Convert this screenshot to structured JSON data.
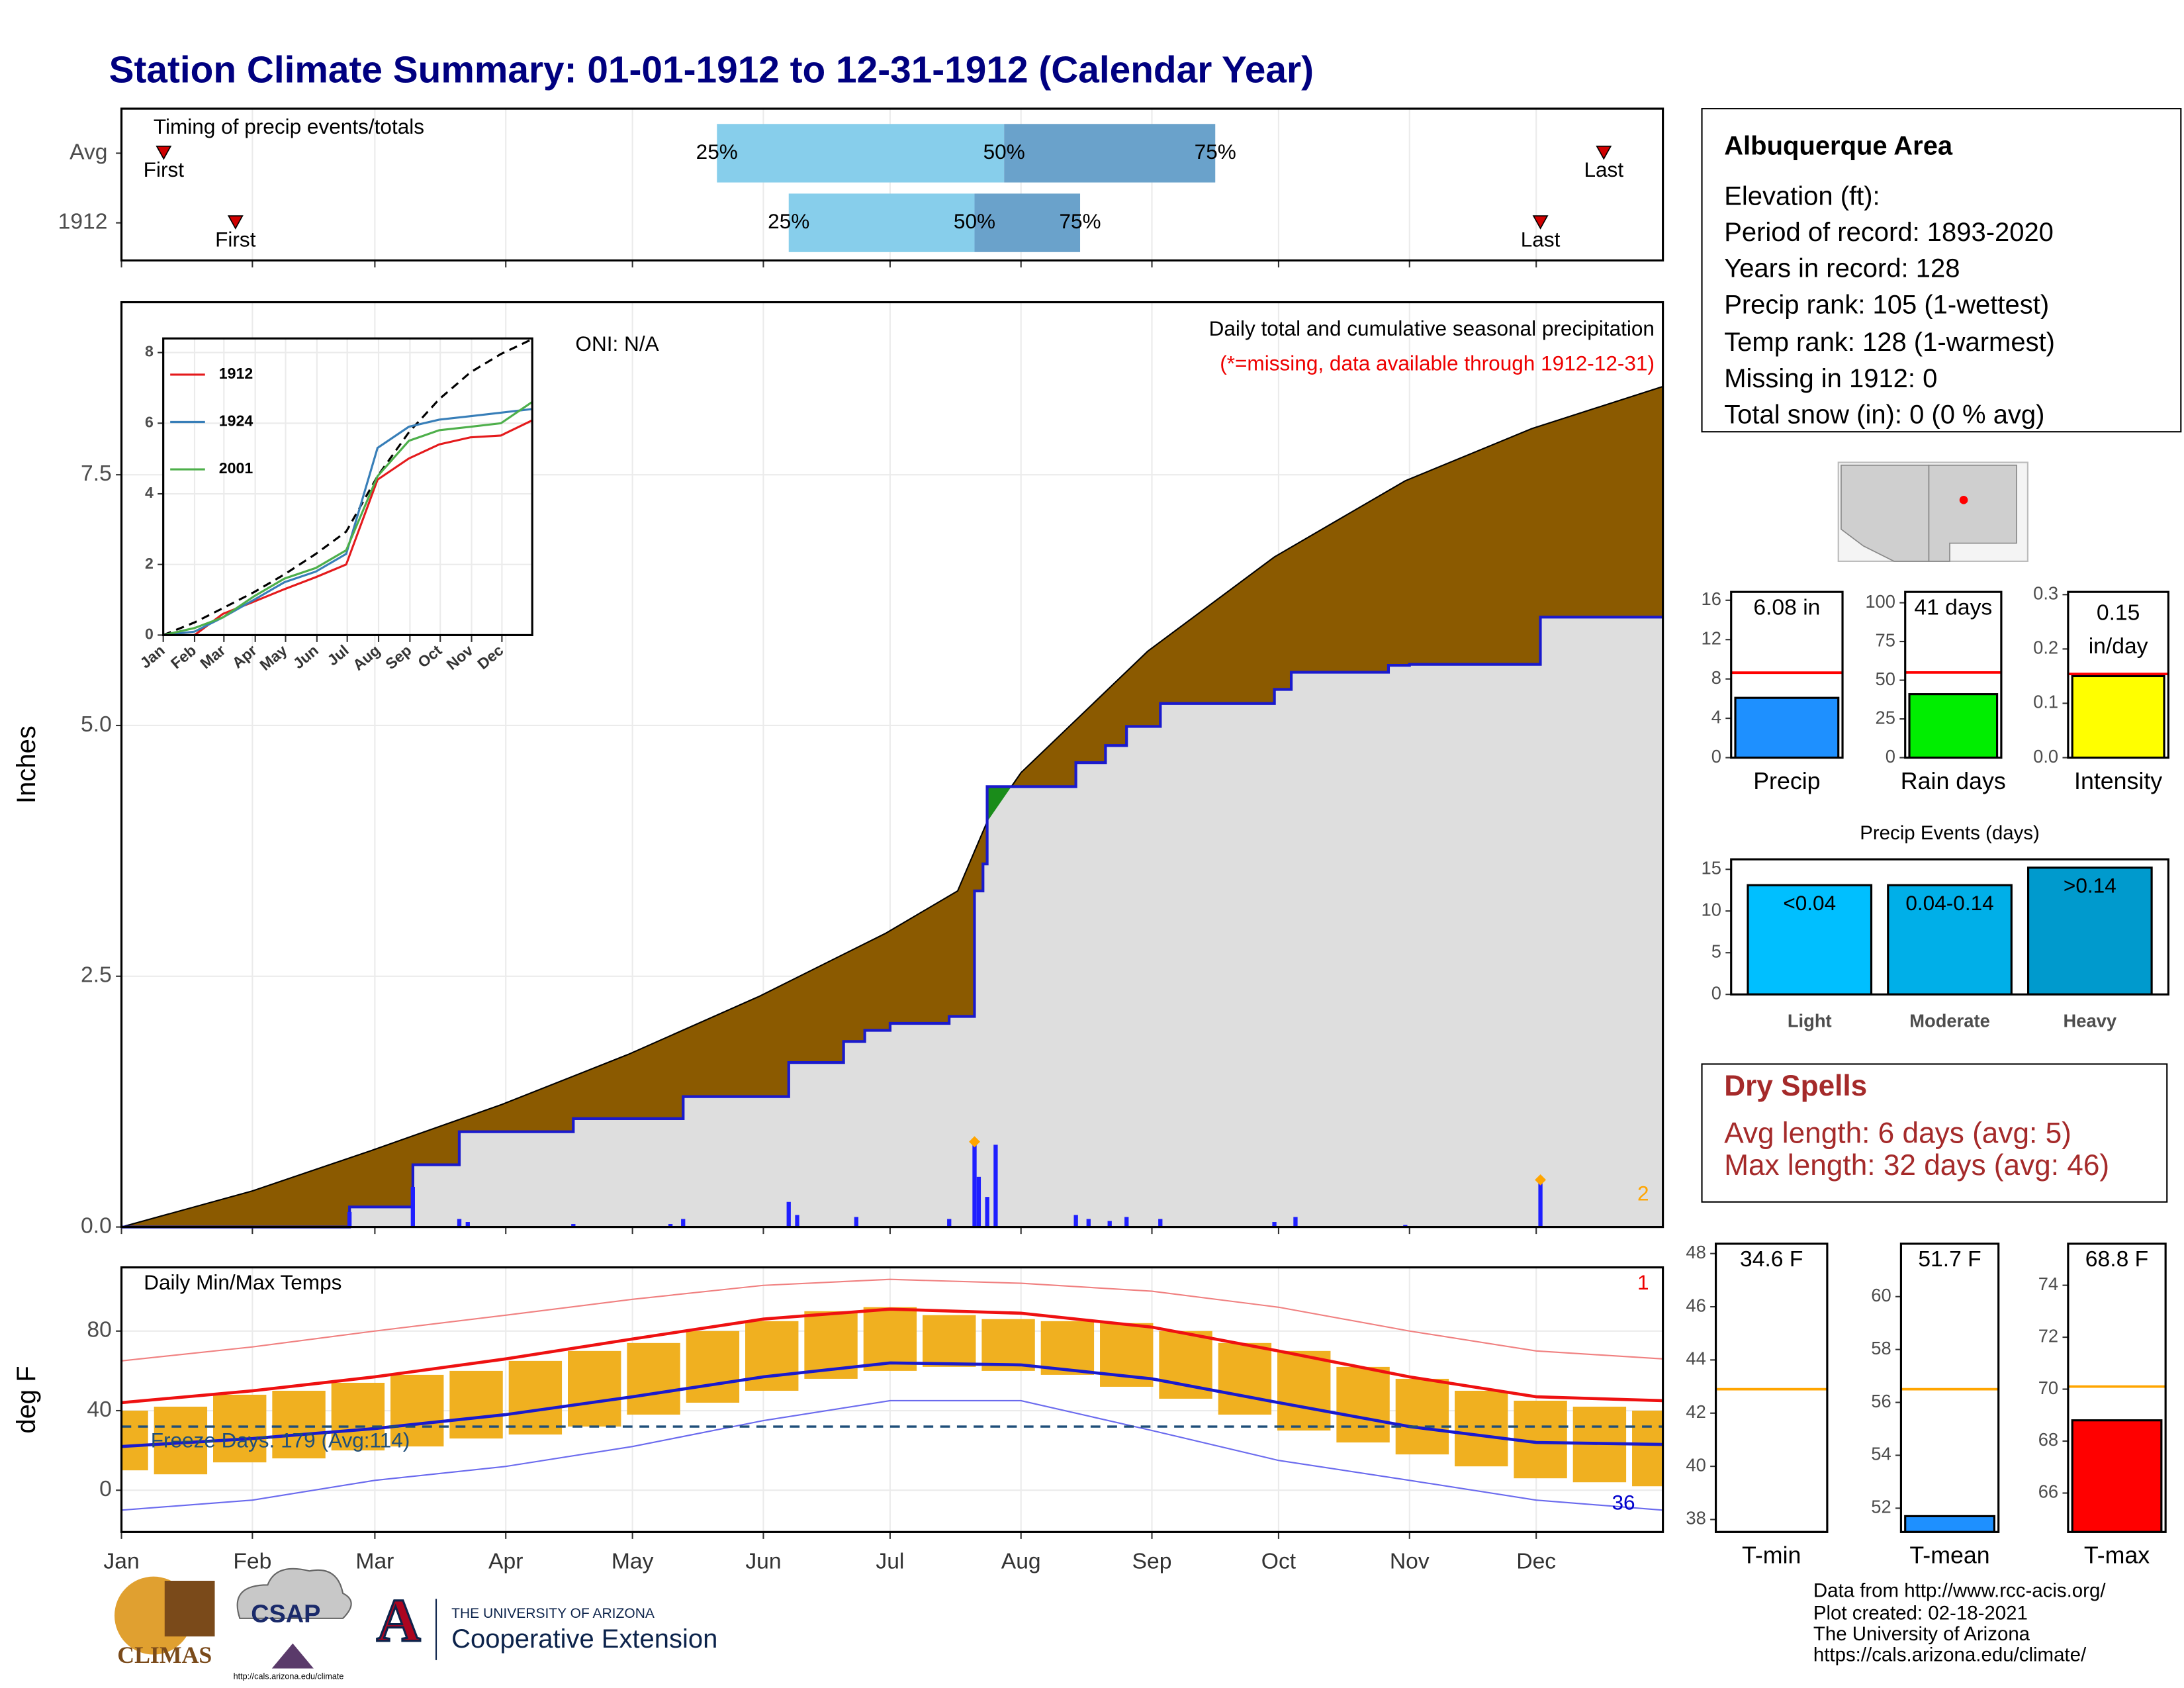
{
  "title": "Station Climate Summary: 01-01-1912 to 12-31-1912 (Calendar Year)",
  "chart_data": [
    {
      "type": "timing",
      "title": "Timing of precip events/totals",
      "rows": [
        "Avg",
        "1912"
      ],
      "first": [
        11,
        28
      ],
      "q25": [
        142,
        159
      ],
      "q50": [
        210,
        203
      ],
      "q75": [
        260,
        228
      ],
      "last": [
        352,
        337
      ],
      "first_label": "First",
      "last_label": "Last",
      "quantile_labels": [
        "25%",
        "50%",
        "75%"
      ],
      "colors": [
        "#87ceeb",
        "#6aa2cb"
      ],
      "marker_color": "#d00000",
      "xlim": [
        1,
        366
      ],
      "xticks": [
        {
          "value": 1,
          "label": "Jan"
        },
        {
          "value": 32,
          "label": "Feb"
        },
        {
          "value": 61,
          "label": "Mar"
        },
        {
          "value": 92,
          "label": "Apr"
        },
        {
          "value": 122,
          "label": "May"
        },
        {
          "value": 153,
          "label": "Jun"
        },
        {
          "value": 183,
          "label": "Jul"
        },
        {
          "value": 214,
          "label": "Aug"
        },
        {
          "value": 245,
          "label": "Sep"
        },
        {
          "value": 275,
          "label": "Oct"
        },
        {
          "value": 306,
          "label": "Nov"
        },
        {
          "value": 336,
          "label": "Dec"
        }
      ],
      "grid": true
    },
    {
      "type": "precip_cumulative",
      "title": "Daily total and cumulative seasonal precipitation",
      "subtitle": "(*=missing, data available through 1912-12-31)",
      "annotation": "ONI: N/A",
      "corner_label": "2",
      "ylabel": "Inches",
      "xlim": [
        1,
        366
      ],
      "xticks": [
        {
          "value": 1,
          "label": "Jan"
        },
        {
          "value": 32,
          "label": "Feb"
        },
        {
          "value": 61,
          "label": "Mar"
        },
        {
          "value": 92,
          "label": "Apr"
        },
        {
          "value": 122,
          "label": "May"
        },
        {
          "value": 153,
          "label": "Jun"
        },
        {
          "value": 183,
          "label": "Jul"
        },
        {
          "value": 214,
          "label": "Aug"
        },
        {
          "value": 245,
          "label": "Sep"
        },
        {
          "value": 275,
          "label": "Oct"
        },
        {
          "value": 306,
          "label": "Nov"
        },
        {
          "value": 336,
          "label": "Dec"
        }
      ],
      "ylim": [
        0,
        9.22
      ],
      "yticks": [
        {
          "value": 0,
          "label": "0.0"
        },
        2.5,
        {
          "value": 5,
          "label": "5.0"
        },
        7.5
      ],
      "grid": true,
      "avg_cumulative": {
        "color": "#8b5a00",
        "above_color": "#1a8c1a",
        "x": [
          1,
          32,
          60,
          91,
          121,
          152,
          182,
          199,
          206,
          214,
          244,
          274,
          305,
          335,
          366
        ],
        "values": [
          0,
          0.36,
          0.76,
          1.22,
          1.72,
          2.3,
          2.93,
          3.35,
          4.04,
          4.53,
          5.74,
          6.68,
          7.44,
          7.96,
          8.38
        ]
      },
      "cumulative": {
        "color": "#1a1acd",
        "fill": "#dedede",
        "x": [
          1,
          55,
          70,
          81,
          108,
          134,
          159,
          172,
          177,
          183,
          197,
          203,
          205,
          206,
          227,
          234,
          239,
          247,
          274,
          278,
          301,
          306,
          337,
          366
        ],
        "values": [
          0,
          0.2,
          0.62,
          0.95,
          1.08,
          1.3,
          1.64,
          1.85,
          1.96,
          2.03,
          2.1,
          3.35,
          3.62,
          4.39,
          4.63,
          4.8,
          4.99,
          5.22,
          5.36,
          5.53,
          5.6,
          5.61,
          6.08,
          6.08
        ]
      },
      "daily": {
        "color": "#1f1fff",
        "x": [
          55,
          70,
          81,
          83,
          108,
          131,
          134,
          159,
          161,
          175,
          197,
          203,
          204,
          206,
          208,
          227,
          230,
          235,
          239,
          247,
          274,
          279,
          305,
          337
        ],
        "values": [
          0.15,
          0.4,
          0.08,
          0.05,
          0.03,
          0.03,
          0.08,
          0.25,
          0.12,
          0.1,
          0.08,
          0.82,
          0.5,
          0.3,
          0.82,
          0.12,
          0.08,
          0.06,
          0.1,
          0.08,
          0.05,
          0.1,
          0.02,
          0.45
        ]
      },
      "records": {
        "color": "#ffa500",
        "x": [
          203,
          337
        ],
        "values": [
          0.85,
          0.47
        ]
      }
    },
    {
      "type": "line",
      "xlim": [
        1,
        366
      ],
      "xticks": [
        {
          "value": 1,
          "label": "Jan"
        },
        {
          "value": 32,
          "label": "Feb"
        },
        {
          "value": 61,
          "label": "Mar"
        },
        {
          "value": 92,
          "label": "Apr"
        },
        {
          "value": 122,
          "label": "May"
        },
        {
          "value": 153,
          "label": "Jun"
        },
        {
          "value": 183,
          "label": "Jul"
        },
        {
          "value": 214,
          "label": "Aug"
        },
        {
          "value": 245,
          "label": "Sep"
        },
        {
          "value": 275,
          "label": "Oct"
        },
        {
          "value": 306,
          "label": "Nov"
        },
        {
          "value": 336,
          "label": "Dec"
        }
      ],
      "ylim": [
        0,
        8.4
      ],
      "yticks": [
        0,
        2,
        4,
        6,
        8
      ],
      "grid": true,
      "legend": "top-left",
      "x": [
        1,
        32,
        60,
        91,
        121,
        152,
        182,
        213,
        244,
        274,
        305,
        335,
        366
      ],
      "average": {
        "color": "#000000",
        "values": [
          0,
          0.36,
          0.76,
          1.22,
          1.72,
          2.3,
          2.93,
          4.5,
          5.74,
          6.68,
          7.44,
          7.96,
          8.38
        ]
      },
      "series": [
        {
          "name": "1912",
          "color": "#e41a1c",
          "values": [
            0,
            0,
            0.6,
            0.95,
            1.3,
            1.64,
            2.0,
            4.4,
            5.0,
            5.4,
            5.6,
            5.65,
            6.08
          ]
        },
        {
          "name": "1924",
          "color": "#377eb8",
          "values": [
            0,
            0.1,
            0.5,
            1.0,
            1.5,
            1.8,
            2.3,
            5.3,
            5.9,
            6.1,
            6.2,
            6.3,
            6.4
          ]
        },
        {
          "name": "2001",
          "color": "#4daf4a",
          "values": [
            0,
            0.2,
            0.5,
            1.1,
            1.6,
            1.9,
            2.4,
            4.5,
            5.5,
            5.8,
            5.9,
            6.0,
            6.6
          ]
        }
      ]
    },
    {
      "type": "temp",
      "title": "Daily Min/Max Temps",
      "ylabel": "deg F",
      "corner_high": "1",
      "corner_low": "36",
      "xlim": [
        1,
        366
      ],
      "xticks": [
        {
          "value": 1,
          "label": "Jan"
        },
        {
          "value": 32,
          "label": "Feb"
        },
        {
          "value": 61,
          "label": "Mar"
        },
        {
          "value": 92,
          "label": "Apr"
        },
        {
          "value": 122,
          "label": "May"
        },
        {
          "value": 153,
          "label": "Jun"
        },
        {
          "value": 183,
          "label": "Jul"
        },
        {
          "value": 214,
          "label": "Aug"
        },
        {
          "value": 245,
          "label": "Sep"
        },
        {
          "value": 275,
          "label": "Oct"
        },
        {
          "value": 306,
          "label": "Nov"
        },
        {
          "value": 336,
          "label": "Dec"
        }
      ],
      "ylim": [
        -21,
        112
      ],
      "yticks": [
        0,
        40,
        80
      ],
      "grid": true,
      "x": [
        1,
        32,
        61,
        92,
        122,
        153,
        183,
        214,
        245,
        275,
        306,
        336,
        366
      ],
      "avg_max": {
        "color": "#ee1111",
        "values": [
          44,
          50,
          57,
          66,
          76,
          86,
          91,
          89,
          82,
          70,
          57,
          47,
          45
        ]
      },
      "avg_min": {
        "color": "#1a1acd",
        "values": [
          22,
          26,
          31,
          38,
          47,
          57,
          64,
          63,
          56,
          44,
          32,
          24,
          23
        ]
      },
      "record_max": {
        "color": "#f08080",
        "values": [
          65,
          72,
          80,
          88,
          96,
          103,
          106,
          104,
          100,
          92,
          80,
          70,
          66
        ]
      },
      "record_min": {
        "color": "#6a6aee",
        "values": [
          -10,
          -5,
          5,
          12,
          22,
          35,
          45,
          45,
          30,
          15,
          5,
          -5,
          -10
        ]
      },
      "daily": {
        "color": "#f0b020",
        "x": [
          1,
          15,
          29,
          43,
          57,
          71,
          85,
          99,
          113,
          127,
          141,
          155,
          169,
          183,
          197,
          211,
          225,
          239,
          253,
          267,
          281,
          295,
          309,
          323,
          337,
          351,
          365
        ],
        "min": [
          10,
          8,
          14,
          16,
          20,
          22,
          26,
          28,
          32,
          38,
          44,
          50,
          56,
          60,
          62,
          60,
          58,
          52,
          46,
          38,
          30,
          24,
          18,
          12,
          6,
          4,
          2
        ],
        "max": [
          40,
          42,
          48,
          50,
          54,
          58,
          60,
          65,
          70,
          74,
          80,
          85,
          90,
          92,
          88,
          86,
          85,
          84,
          80,
          74,
          70,
          62,
          56,
          50,
          45,
          42,
          40
        ]
      },
      "freeze": {
        "value": 32,
        "label": "Freeze Days: 179 (Avg:114)",
        "color": "#1f4e79"
      }
    },
    {
      "type": "bar",
      "categories": [
        "Precip"
      ],
      "values": [
        6.08
      ],
      "value_labels": [
        "6.08 in"
      ],
      "color": "#1e90ff",
      "average": 8.64,
      "average_color": "#ff0000",
      "ylim": [
        0,
        16.85
      ],
      "yticks": [
        0,
        4,
        8,
        12,
        16
      ]
    },
    {
      "type": "bar",
      "categories": [
        "Rain days"
      ],
      "values": [
        41
      ],
      "value_labels": [
        "41 days"
      ],
      "color": "#00ee00",
      "average": 55,
      "average_color": "#ff0000",
      "ylim": [
        0,
        107
      ],
      "yticks": [
        0,
        25,
        50,
        75,
        100
      ]
    },
    {
      "type": "bar",
      "categories": [
        "Intensity"
      ],
      "values": [
        0.15
      ],
      "value_labels": [
        "0.15"
      ],
      "unit_label": "in/day",
      "color": "#ffff00",
      "average": 0.154,
      "average_color": "#ff0000",
      "ylim": [
        0,
        0.305
      ],
      "yticks": [
        {
          "value": 0,
          "label": "0.0"
        },
        0.1,
        0.2,
        0.3
      ]
    },
    {
      "type": "bar",
      "title": "Precip Events (days)",
      "categories": [
        "Light",
        "Moderate",
        "Heavy"
      ],
      "values": [
        13.1,
        13.1,
        15.2
      ],
      "value_labels": [
        "<0.04",
        "0.04-0.14",
        ">0.14"
      ],
      "colors": [
        "#00bfff",
        "#00afe8",
        "#009acd"
      ],
      "ylim": [
        0,
        16.2
      ],
      "yticks": [
        0,
        5,
        10,
        15
      ]
    },
    {
      "type": "bar",
      "categories": [
        "T-min"
      ],
      "values": [
        34.6
      ],
      "value_labels": [
        "34.6 F"
      ],
      "color": "#1e90ff",
      "average": 42.9,
      "average_color": "#ffa500",
      "ylim": [
        37.53,
        48.37
      ],
      "yticks": [
        38,
        40,
        42,
        44,
        46,
        48
      ]
    },
    {
      "type": "bar",
      "categories": [
        "T-mean"
      ],
      "values": [
        51.7
      ],
      "value_labels": [
        "51.7 F"
      ],
      "color": "#1e90ff",
      "average": 56.5,
      "average_color": "#ffa500",
      "ylim": [
        51.1,
        62
      ],
      "yticks": [
        52,
        54,
        56,
        58,
        60
      ]
    },
    {
      "type": "bar",
      "categories": [
        "T-max"
      ],
      "values": [
        68.8
      ],
      "value_labels": [
        "68.8 F"
      ],
      "color": "#ff0000",
      "average": 70.1,
      "average_color": "#ffa500",
      "ylim": [
        64.5,
        75.6
      ],
      "yticks": [
        66,
        68,
        70,
        72,
        74
      ]
    }
  ],
  "info": {
    "title": "Albuquerque Area",
    "lines": [
      "Elevation (ft):",
      "Period of record: 1893-2020",
      "Years in record: 128",
      "Precip rank: 105 (1-wettest)",
      "Temp rank: 128 (1-warmest)",
      "Missing in 1912: 0",
      "Total snow (in): 0 (0 % avg)"
    ]
  },
  "dry_spells": {
    "title": "Dry Spells",
    "lines": [
      "Avg length: 6 days (avg: 5)",
      "Max length: 32 days (avg: 46)"
    ]
  },
  "footer": [
    "Data from http://www.rcc-acis.org/",
    "Plot created: 02-18-2021",
    "The University of Arizona",
    "https://cals.arizona.edu/climate/"
  ],
  "logos": {
    "climas": "CLIMAS",
    "csap": "CSAP",
    "csap_url": "http://cals.arizona.edu/climate",
    "university": "THE UNIVERSITY OF ARIZONA",
    "extension": "Cooperative Extension"
  }
}
